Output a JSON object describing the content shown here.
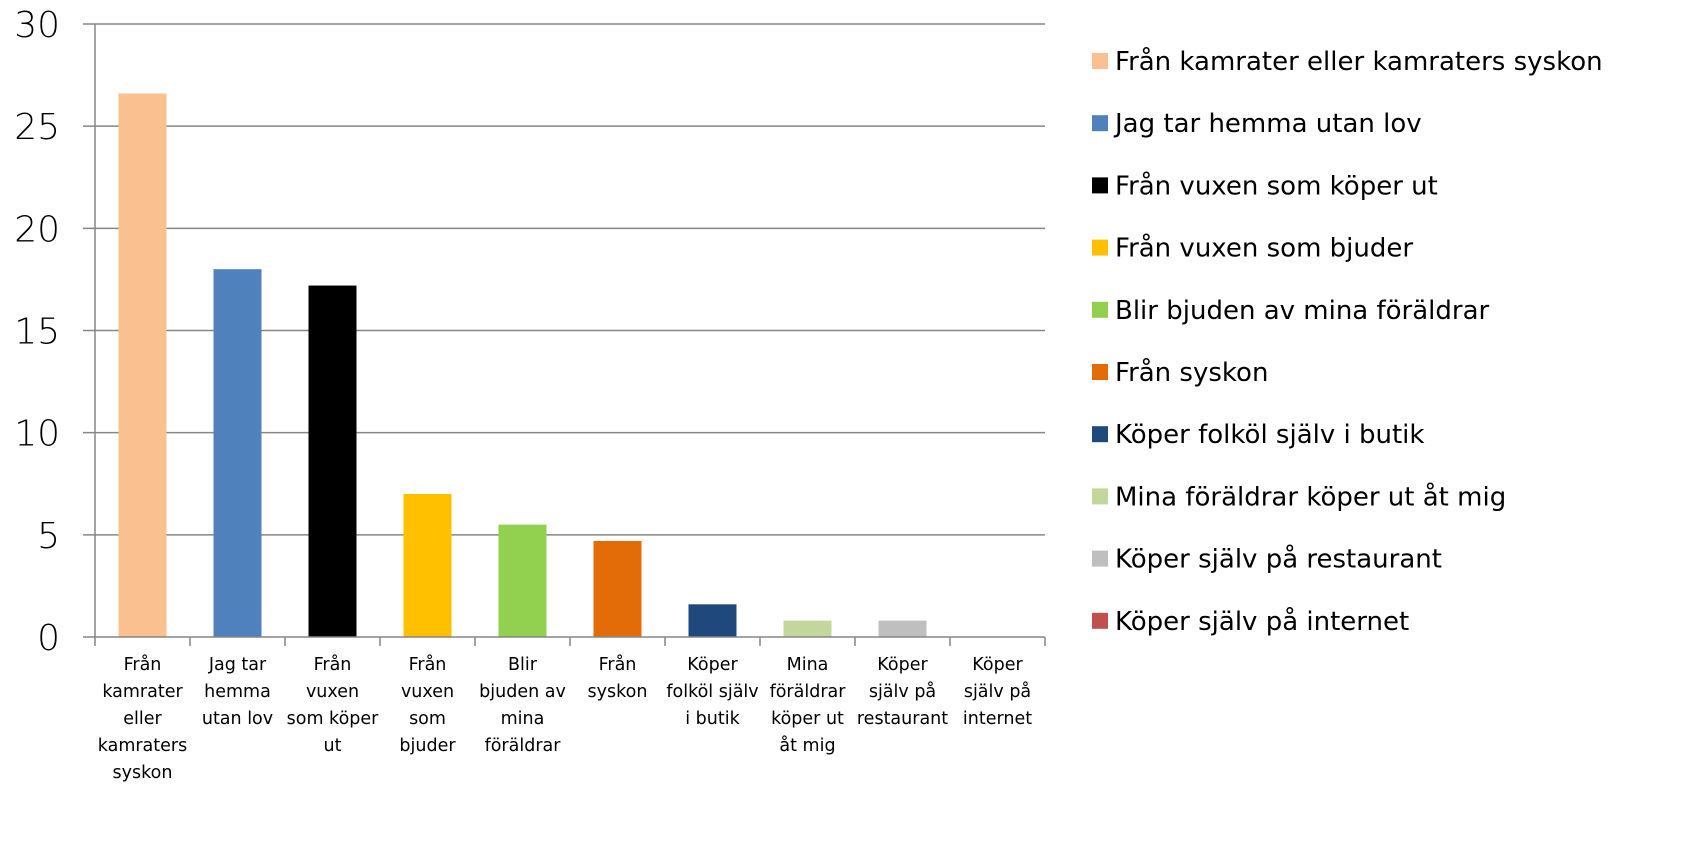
{
  "chart_data": {
    "type": "bar",
    "title": "",
    "xlabel": "",
    "ylabel": "",
    "ylim": [
      0,
      30
    ],
    "yticks": [
      0,
      5,
      10,
      15,
      20,
      25,
      30
    ],
    "grid": true,
    "legend_position": "right",
    "categories": [
      "Från kamrater eller kamraters syskon",
      "Jag tar hemma utan lov",
      "Från vuxen som köper ut",
      "Från vuxen som bjuder",
      "Blir bjuden av mina föräldrar",
      "Från syskon",
      "Köper folköl själv i butik",
      "Mina föräldrar köper ut åt mig",
      "Köper själv på restaurant",
      "Köper själv på internet"
    ],
    "category_tick_lines": [
      [
        "Från",
        "kamrater",
        "eller",
        "kamraters",
        "syskon"
      ],
      [
        "Jag tar",
        "hemma",
        "utan lov"
      ],
      [
        "Från",
        "vuxen",
        "som köper",
        "ut"
      ],
      [
        "Från",
        "vuxen",
        "som",
        "bjuder"
      ],
      [
        "Blir",
        "bjuden av",
        "mina",
        "föräldrar"
      ],
      [
        "Från",
        "syskon"
      ],
      [
        "Köper",
        "folköl själv",
        "i butik"
      ],
      [
        "Mina",
        "föräldrar",
        "köper ut",
        "åt mig"
      ],
      [
        "Köper",
        "själv på",
        "restaurant"
      ],
      [
        "Köper",
        "själv på",
        "internet"
      ]
    ],
    "values": [
      26.6,
      18.0,
      17.2,
      7.0,
      5.5,
      4.7,
      1.6,
      0.8,
      0.8,
      0.0
    ],
    "colors": [
      "#FAC090",
      "#4F81BD",
      "#000000",
      "#FFC000",
      "#92D050",
      "#E36C09",
      "#1F497D",
      "#C3D69B",
      "#BFBFBF",
      "#C0504D"
    ],
    "legend": [
      "Från kamrater eller kamraters syskon",
      "Jag tar hemma utan lov",
      "Från vuxen som köper ut",
      "Från vuxen som bjuder",
      "Blir bjuden av mina föräldrar",
      "Från syskon",
      "Köper folköl själv i butik",
      "Mina föräldrar köper ut åt mig",
      "Köper själv på restaurant",
      "Köper själv på internet"
    ],
    "gridline_color": "#868686",
    "axis_color": "#868686"
  }
}
